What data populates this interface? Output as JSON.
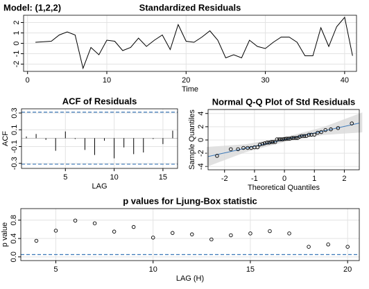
{
  "header": {
    "text": "Model: (1,2,2)"
  },
  "chart_data": [
    {
      "type": "line",
      "title": "Standardized Residuals",
      "x_label": "Time",
      "color": "#000000",
      "grid": true,
      "x": [
        1,
        2,
        3,
        4,
        5,
        6,
        7,
        8,
        9,
        10,
        11,
        12,
        13,
        14,
        15,
        16,
        17,
        18,
        19,
        20,
        21,
        22,
        23,
        24,
        25,
        26,
        27,
        28,
        29,
        30,
        31,
        32,
        33,
        34,
        35,
        36,
        37,
        38,
        39,
        40,
        41
      ],
      "values": [
        0.1,
        0.15,
        0.2,
        0.8,
        1.1,
        0.8,
        -2.4,
        -0.4,
        -1.1,
        0.3,
        0.2,
        -0.7,
        -0.4,
        0.5,
        -0.3,
        0.3,
        0.8,
        -0.6,
        1.8,
        0.2,
        0.1,
        0.6,
        1.2,
        0.3,
        -1.4,
        -1.1,
        -1.4,
        0.3,
        -0.3,
        -0.5,
        0.1,
        0.6,
        0.6,
        0.1,
        -1.2,
        -1.2,
        1.5,
        -0.3,
        1.6,
        2.5,
        -1.2
      ],
      "xlim": [
        -0.5,
        41.5
      ],
      "ylim": [
        -2.7,
        2.7
      ],
      "xticks": [
        0,
        10,
        20,
        30,
        40
      ],
      "yticks": [
        -2,
        -1,
        0,
        1,
        2
      ]
    },
    {
      "type": "acf",
      "title": "ACF of Residuals",
      "x_label": "LAG",
      "y_label": "ACF",
      "color": "#000000",
      "grid": true,
      "x": [
        1,
        2,
        3,
        4,
        5,
        6,
        7,
        8,
        9,
        10,
        11,
        12,
        13,
        14,
        15,
        16
      ],
      "values": [
        0.02,
        0.05,
        -0.02,
        -0.15,
        0.08,
        -0.01,
        -0.14,
        -0.2,
        -0.03,
        -0.24,
        -0.11,
        -0.19,
        -0.17,
        -0.01,
        -0.07,
        0.09
      ],
      "bounds": [
        -0.31,
        0.31
      ],
      "bound_color": "#3b78b8",
      "xlim": [
        0.5,
        16.5
      ],
      "ylim": [
        -0.36,
        0.35
      ],
      "xticks": [
        5,
        10,
        15
      ],
      "yticks": [
        -0.3,
        -0.1,
        0.1,
        0.3
      ]
    },
    {
      "type": "qq",
      "title": "Normal Q-Q Plot of Std Residuals",
      "x_label": "Theoretical Quantiles",
      "y_label": "Sample Quantiles",
      "color": "#000000",
      "line_color": "#3b78b8",
      "band_color": "#d9d9d9",
      "grid": true,
      "x": [
        -2.25,
        -1.79,
        -1.55,
        -1.37,
        -1.23,
        -1.11,
        -1.0,
        -0.9,
        -0.82,
        -0.73,
        -0.66,
        -0.58,
        -0.51,
        -0.44,
        -0.38,
        -0.31,
        -0.25,
        -0.18,
        -0.12,
        -0.06,
        0,
        0.06,
        0.12,
        0.18,
        0.25,
        0.31,
        0.38,
        0.44,
        0.51,
        0.58,
        0.66,
        0.73,
        0.82,
        0.9,
        1.0,
        1.11,
        1.23,
        1.37,
        1.55,
        1.79,
        2.25
      ],
      "values": [
        -2.4,
        -1.4,
        -1.4,
        -1.2,
        -1.2,
        -1.2,
        -1.1,
        -1.1,
        -0.7,
        -0.6,
        -0.5,
        -0.4,
        -0.4,
        -0.3,
        -0.3,
        -0.3,
        0.1,
        0.1,
        0.1,
        0.1,
        0.15,
        0.2,
        0.2,
        0.2,
        0.3,
        0.3,
        0.3,
        0.3,
        0.5,
        0.6,
        0.6,
        0.6,
        0.8,
        0.8,
        0.8,
        1.1,
        1.2,
        1.5,
        1.6,
        1.8,
        2.5
      ],
      "fit_line": {
        "intercept": 0.05,
        "slope": 1.0
      },
      "band": {
        "x": [
          -2.6,
          -1.3,
          0,
          1.3,
          2.6
        ],
        "lower": [
          -4.05,
          -1.85,
          -0.3,
          0.75,
          1.15
        ],
        "upper": [
          -1.05,
          -0.65,
          0.4,
          1.95,
          4.15
        ]
      },
      "xlim": [
        -2.55,
        2.5
      ],
      "ylim": [
        -4.5,
        4.6
      ],
      "xticks": [
        -2,
        -1,
        0,
        1,
        2
      ],
      "yticks": [
        -4,
        -2,
        0,
        2,
        4
      ]
    },
    {
      "type": "scatter",
      "title": "p values for Ljung-Box statistic",
      "x_label": "LAG (H)",
      "y_label": "p value",
      "color": "#000000",
      "grid": true,
      "threshold": 0.05,
      "threshold_color": "#3b78b8",
      "x": [
        4,
        5,
        6,
        7,
        8,
        9,
        10,
        11,
        12,
        13,
        14,
        15,
        16,
        17,
        18,
        19,
        20
      ],
      "values": [
        0.35,
        0.57,
        0.79,
        0.73,
        0.55,
        0.65,
        0.42,
        0.52,
        0.49,
        0.38,
        0.47,
        0.51,
        0.56,
        0.51,
        0.22,
        0.27,
        0.22
      ],
      "xlim": [
        3.2,
        20.6
      ],
      "ylim": [
        -0.08,
        1.05
      ],
      "xticks": [
        5,
        10,
        15,
        20
      ],
      "yticks": [
        {
          "value": 0,
          "label": "0.0"
        },
        {
          "value": 0.4,
          "label": "0.4"
        },
        {
          "value": 0.8,
          "label": "0.8"
        }
      ]
    }
  ]
}
